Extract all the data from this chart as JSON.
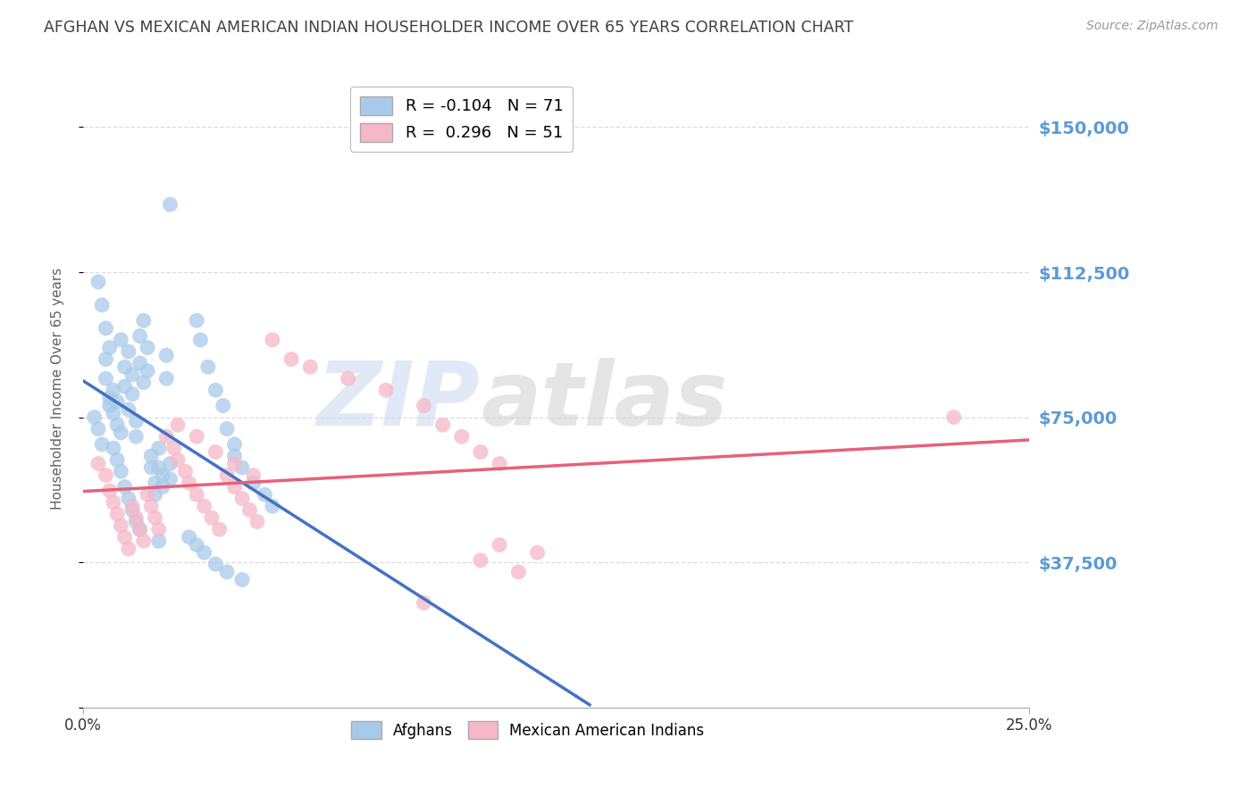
{
  "title": "AFGHAN VS MEXICAN AMERICAN INDIAN HOUSEHOLDER INCOME OVER 65 YEARS CORRELATION CHART",
  "source": "Source: ZipAtlas.com",
  "ylabel": "Householder Income Over 65 years",
  "y_ticks": [
    0,
    37500,
    75000,
    112500,
    150000
  ],
  "y_tick_labels": [
    "",
    "$37,500",
    "$75,000",
    "$112,500",
    "$150,000"
  ],
  "xmin": 0.0,
  "xmax": 0.25,
  "ymin": 0,
  "ymax": 165000,
  "legend_blue_r": "-0.104",
  "legend_blue_n": "71",
  "legend_pink_r": "0.296",
  "legend_pink_n": "51",
  "blue_color": "#A8CAEA",
  "pink_color": "#F5B8C8",
  "blue_line_color": "#4472C4",
  "pink_line_color": "#E8607A",
  "blue_scatter": [
    [
      0.003,
      75000
    ],
    [
      0.004,
      72000
    ],
    [
      0.005,
      68000
    ],
    [
      0.006,
      90000
    ],
    [
      0.006,
      85000
    ],
    [
      0.007,
      80000
    ],
    [
      0.007,
      78000
    ],
    [
      0.008,
      76000
    ],
    [
      0.008,
      82000
    ],
    [
      0.009,
      79000
    ],
    [
      0.009,
      73000
    ],
    [
      0.01,
      71000
    ],
    [
      0.01,
      95000
    ],
    [
      0.011,
      88000
    ],
    [
      0.011,
      83000
    ],
    [
      0.012,
      77000
    ],
    [
      0.012,
      92000
    ],
    [
      0.013,
      86000
    ],
    [
      0.013,
      81000
    ],
    [
      0.014,
      74000
    ],
    [
      0.014,
      70000
    ],
    [
      0.015,
      96000
    ],
    [
      0.015,
      89000
    ],
    [
      0.016,
      84000
    ],
    [
      0.016,
      100000
    ],
    [
      0.017,
      93000
    ],
    [
      0.017,
      87000
    ],
    [
      0.018,
      65000
    ],
    [
      0.018,
      62000
    ],
    [
      0.019,
      58000
    ],
    [
      0.019,
      55000
    ],
    [
      0.02,
      67000
    ],
    [
      0.02,
      62000
    ],
    [
      0.021,
      60000
    ],
    [
      0.021,
      57000
    ],
    [
      0.022,
      91000
    ],
    [
      0.022,
      85000
    ],
    [
      0.023,
      63000
    ],
    [
      0.023,
      59000
    ],
    [
      0.004,
      110000
    ],
    [
      0.005,
      104000
    ],
    [
      0.006,
      98000
    ],
    [
      0.007,
      93000
    ],
    [
      0.008,
      67000
    ],
    [
      0.009,
      64000
    ],
    [
      0.01,
      61000
    ],
    [
      0.011,
      57000
    ],
    [
      0.012,
      54000
    ],
    [
      0.013,
      51000
    ],
    [
      0.014,
      48000
    ],
    [
      0.023,
      130000
    ],
    [
      0.03,
      100000
    ],
    [
      0.031,
      95000
    ],
    [
      0.033,
      88000
    ],
    [
      0.035,
      82000
    ],
    [
      0.037,
      78000
    ],
    [
      0.038,
      72000
    ],
    [
      0.04,
      68000
    ],
    [
      0.04,
      65000
    ],
    [
      0.042,
      62000
    ],
    [
      0.045,
      58000
    ],
    [
      0.048,
      55000
    ],
    [
      0.05,
      52000
    ],
    [
      0.028,
      44000
    ],
    [
      0.03,
      42000
    ],
    [
      0.032,
      40000
    ],
    [
      0.015,
      46000
    ],
    [
      0.02,
      43000
    ],
    [
      0.035,
      37000
    ],
    [
      0.038,
      35000
    ],
    [
      0.042,
      33000
    ]
  ],
  "pink_scatter": [
    [
      0.004,
      63000
    ],
    [
      0.006,
      60000
    ],
    [
      0.007,
      56000
    ],
    [
      0.008,
      53000
    ],
    [
      0.009,
      50000
    ],
    [
      0.01,
      47000
    ],
    [
      0.011,
      44000
    ],
    [
      0.012,
      41000
    ],
    [
      0.013,
      52000
    ],
    [
      0.014,
      49000
    ],
    [
      0.015,
      46000
    ],
    [
      0.016,
      43000
    ],
    [
      0.017,
      55000
    ],
    [
      0.018,
      52000
    ],
    [
      0.019,
      49000
    ],
    [
      0.02,
      46000
    ],
    [
      0.022,
      70000
    ],
    [
      0.024,
      67000
    ],
    [
      0.025,
      64000
    ],
    [
      0.027,
      61000
    ],
    [
      0.028,
      58000
    ],
    [
      0.03,
      55000
    ],
    [
      0.032,
      52000
    ],
    [
      0.034,
      49000
    ],
    [
      0.036,
      46000
    ],
    [
      0.038,
      60000
    ],
    [
      0.04,
      57000
    ],
    [
      0.042,
      54000
    ],
    [
      0.044,
      51000
    ],
    [
      0.046,
      48000
    ],
    [
      0.05,
      95000
    ],
    [
      0.055,
      90000
    ],
    [
      0.06,
      88000
    ],
    [
      0.07,
      85000
    ],
    [
      0.08,
      82000
    ],
    [
      0.09,
      78000
    ],
    [
      0.095,
      73000
    ],
    [
      0.1,
      70000
    ],
    [
      0.105,
      66000
    ],
    [
      0.11,
      63000
    ],
    [
      0.025,
      73000
    ],
    [
      0.03,
      70000
    ],
    [
      0.035,
      66000
    ],
    [
      0.04,
      63000
    ],
    [
      0.045,
      60000
    ],
    [
      0.11,
      42000
    ],
    [
      0.12,
      40000
    ],
    [
      0.105,
      38000
    ],
    [
      0.115,
      35000
    ],
    [
      0.23,
      75000
    ],
    [
      0.09,
      27000
    ]
  ],
  "watermark_zip": "ZIP",
  "watermark_atlas": "atlas",
  "background_color": "#FFFFFF",
  "grid_color": "#DDDDDD",
  "title_color": "#404040",
  "ylabel_color": "#606060",
  "tick_label_color": "#5B9BD5",
  "source_color": "#999999"
}
